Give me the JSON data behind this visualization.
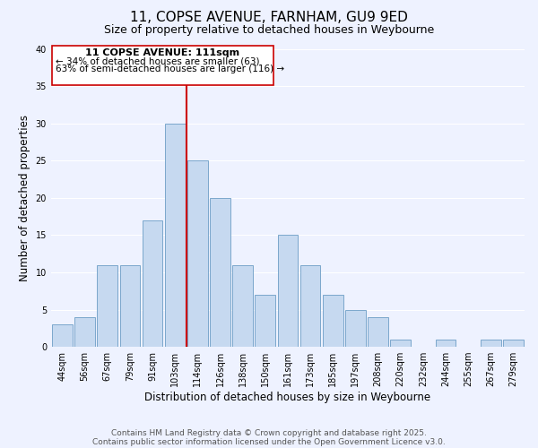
{
  "title": "11, COPSE AVENUE, FARNHAM, GU9 9ED",
  "subtitle": "Size of property relative to detached houses in Weybourne",
  "xlabel": "Distribution of detached houses by size in Weybourne",
  "ylabel": "Number of detached properties",
  "bar_labels": [
    "44sqm",
    "56sqm",
    "67sqm",
    "79sqm",
    "91sqm",
    "103sqm",
    "114sqm",
    "126sqm",
    "138sqm",
    "150sqm",
    "161sqm",
    "173sqm",
    "185sqm",
    "197sqm",
    "208sqm",
    "220sqm",
    "232sqm",
    "244sqm",
    "255sqm",
    "267sqm",
    "279sqm"
  ],
  "bar_values": [
    3,
    4,
    11,
    11,
    17,
    30,
    25,
    20,
    11,
    7,
    15,
    11,
    7,
    5,
    4,
    1,
    0,
    1,
    0,
    1,
    1
  ],
  "bar_color": "#c6d9f0",
  "bar_edge_color": "#7ba7cc",
  "vline_x_index": 6,
  "vline_color": "#cc0000",
  "ylim": [
    0,
    40
  ],
  "yticks": [
    0,
    5,
    10,
    15,
    20,
    25,
    30,
    35,
    40
  ],
  "annotation_title": "11 COPSE AVENUE: 111sqm",
  "annotation_line1": "← 34% of detached houses are smaller (63)",
  "annotation_line2": "63% of semi-detached houses are larger (116) →",
  "footer1": "Contains HM Land Registry data © Crown copyright and database right 2025.",
  "footer2": "Contains public sector information licensed under the Open Government Licence v3.0.",
  "bg_color": "#eef2ff",
  "grid_color": "#ffffff",
  "title_fontsize": 11,
  "subtitle_fontsize": 9,
  "axis_label_fontsize": 8.5,
  "tick_fontsize": 7,
  "annotation_fontsize": 7.5,
  "footer_fontsize": 6.5
}
